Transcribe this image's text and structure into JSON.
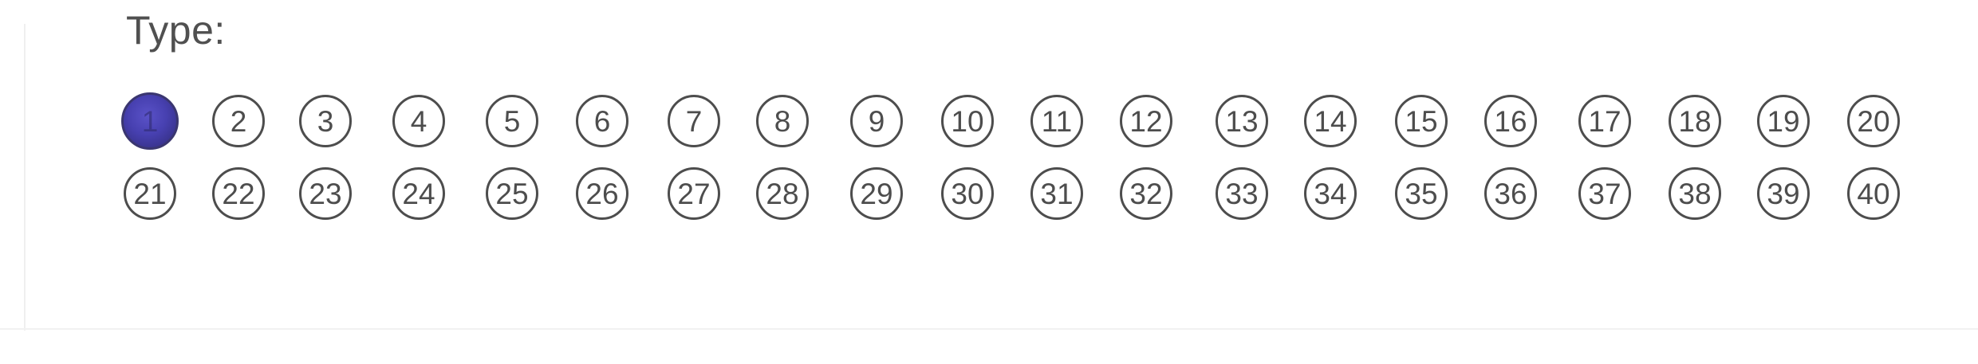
{
  "form": {
    "type_label": "Type:",
    "bubbles": [
      {
        "label": "1",
        "filled": true
      },
      {
        "label": "2",
        "filled": false
      },
      {
        "label": "3",
        "filled": false
      },
      {
        "label": "4",
        "filled": false
      },
      {
        "label": "5",
        "filled": false
      },
      {
        "label": "6",
        "filled": false
      },
      {
        "label": "7",
        "filled": false
      },
      {
        "label": "8",
        "filled": false
      },
      {
        "label": "9",
        "filled": false
      },
      {
        "label": "10",
        "filled": false
      },
      {
        "label": "11",
        "filled": false
      },
      {
        "label": "12",
        "filled": false
      },
      {
        "label": "13",
        "filled": false
      },
      {
        "label": "14",
        "filled": false
      },
      {
        "label": "15",
        "filled": false
      },
      {
        "label": "16",
        "filled": false
      },
      {
        "label": "17",
        "filled": false
      },
      {
        "label": "18",
        "filled": false
      },
      {
        "label": "19",
        "filled": false
      },
      {
        "label": "20",
        "filled": false
      },
      {
        "label": "21",
        "filled": false
      },
      {
        "label": "22",
        "filled": false
      },
      {
        "label": "23",
        "filled": false
      },
      {
        "label": "24",
        "filled": false
      },
      {
        "label": "25",
        "filled": false
      },
      {
        "label": "26",
        "filled": false
      },
      {
        "label": "27",
        "filled": false
      },
      {
        "label": "28",
        "filled": false
      },
      {
        "label": "29",
        "filled": false
      },
      {
        "label": "30",
        "filled": false
      },
      {
        "label": "31",
        "filled": false
      },
      {
        "label": "32",
        "filled": false
      },
      {
        "label": "33",
        "filled": false
      },
      {
        "label": "34",
        "filled": false
      },
      {
        "label": "35",
        "filled": false
      },
      {
        "label": "36",
        "filled": false
      },
      {
        "label": "37",
        "filled": false
      },
      {
        "label": "38",
        "filled": false
      },
      {
        "label": "39",
        "filled": false
      },
      {
        "label": "40",
        "filled": false
      }
    ],
    "fill_color": "#4740b0",
    "outline_color": "#4d4d4d"
  }
}
